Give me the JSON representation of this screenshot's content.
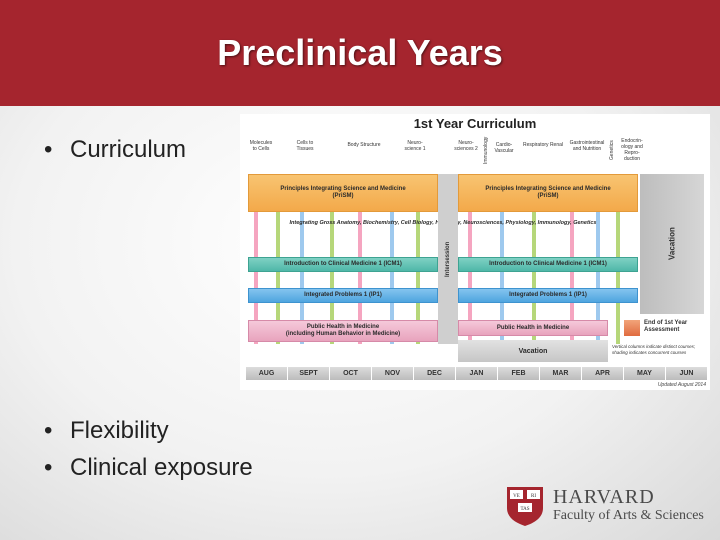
{
  "slide": {
    "title": "Preclinical Years",
    "bullets_top": [
      "Curriculum"
    ],
    "bullets_bottom": [
      "Flexibility",
      "Clinical exposure"
    ],
    "bullet_char": "•"
  },
  "curriculum": {
    "title": "1st Year Curriculum",
    "courses": [
      "Molecules to Cells",
      "Cells to Tissues",
      "Body Structure",
      "Neuro-science 1",
      "Neuro-sciences 2",
      "Immunology",
      "Cardio-Vascular",
      "Respiratory Renal",
      "Gastrointestinal and Nutrition",
      "Genetics",
      "Endocrin-ology and Repro-duction"
    ],
    "prism_label": "Principles Integrating Science and Medicine\n(PriSM)",
    "integrating_label": "Integrating Gross Anatomy, Biochemistry, Cell Biology, Histology, Neurosciences, Physiology, Immunology, Genetics",
    "icm_label": "Introduction to Clinical Medicine 1 (ICM1)",
    "ip_label": "Integrated Problems 1 (IP1)",
    "ph_left_label": "Public Health in Medicine\n(including Human Behavior in Medicine)",
    "ph_right_label": "Public Health in Medicine",
    "intersession": "Intersession",
    "vacation_right": "Vacation",
    "vacation_bottom": "Vacation",
    "assessment": "End of 1st Year Assessment",
    "note": "Vertical columns indicate distinct courses; shading indicates concurrent courses",
    "months": [
      "AUG",
      "SEPT",
      "OCT",
      "NOV",
      "DEC",
      "JAN",
      "FEB",
      "MAR",
      "APR",
      "MAY",
      "JUN"
    ],
    "updated": "Updated August 2014"
  },
  "logo": {
    "shield_text": [
      "VE",
      "RI",
      "TAS"
    ],
    "name": "HARVARD",
    "subtitle": "Faculty of Arts & Sciences",
    "shield_color": "#a5252e"
  },
  "colors": {
    "title_bar": "#a5252e",
    "prism": "#f3a94a",
    "icm": "#4fb7a8",
    "ip": "#4fa5df",
    "public_health": "#e8a3bd"
  }
}
